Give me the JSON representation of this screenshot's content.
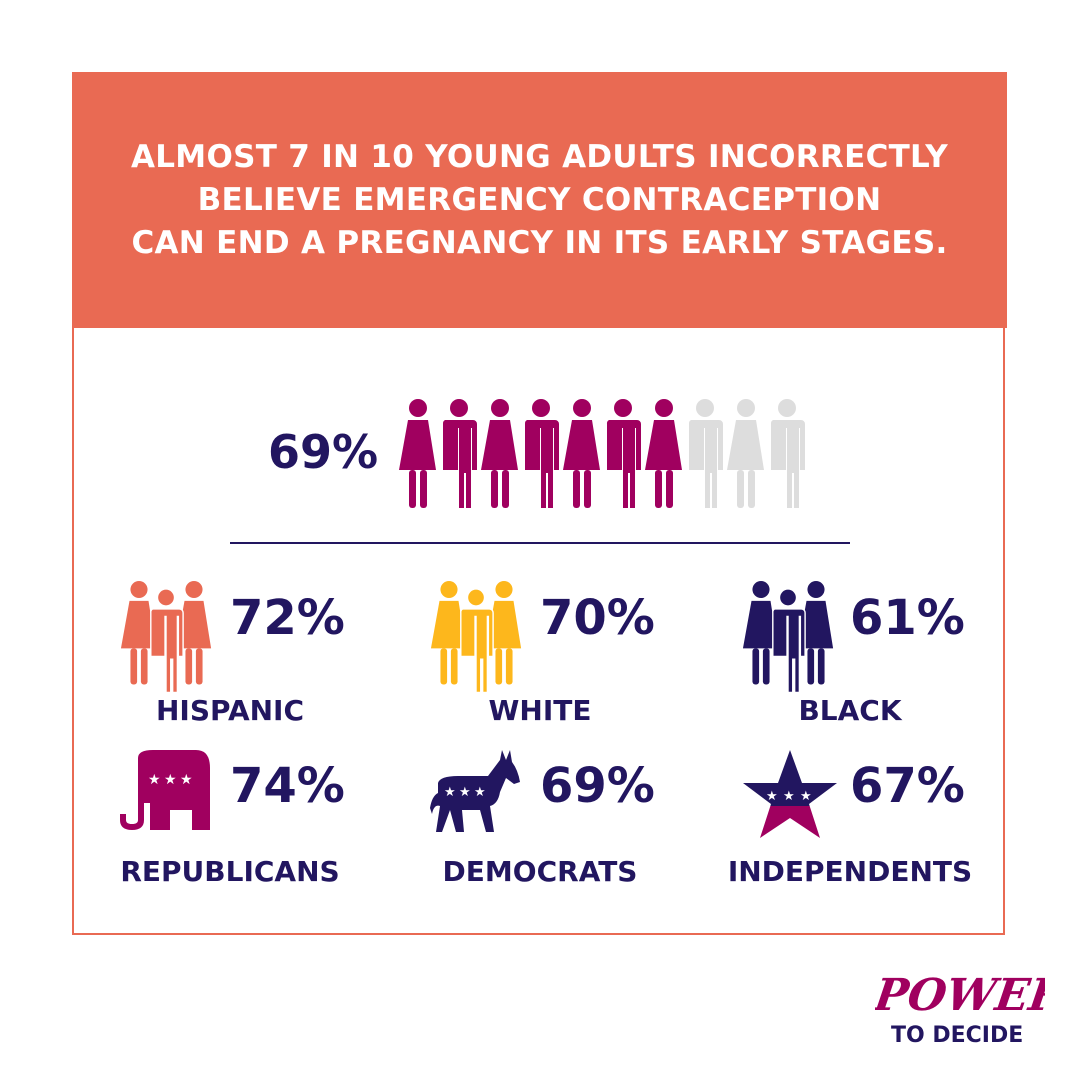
{
  "header": {
    "lines": [
      "ALMOST 7 IN 10 YOUNG ADULTS INCORRECTLY",
      "BELIEVE EMERGENCY CONTRACEPTION",
      "CAN END A PREGNANCY IN ITS EARLY STAGES."
    ]
  },
  "overall": {
    "label": "69%",
    "filled": 7,
    "total": 10
  },
  "groups": [
    {
      "label": "HISPANIC",
      "pct": "72%",
      "icon": "people-group-icon",
      "color": "#E96A53"
    },
    {
      "label": "WHITE",
      "pct": "70%",
      "icon": "people-group-icon",
      "color": "#FDB71C"
    },
    {
      "label": "BLACK",
      "pct": "61%",
      "icon": "people-group-icon",
      "color": "#221660"
    },
    {
      "label": "REPUBLICANS",
      "pct": "74%",
      "icon": "elephant-icon",
      "color": "#A0005F"
    },
    {
      "label": "DEMOCRATS",
      "pct": "69%",
      "icon": "donkey-icon",
      "color": "#221660"
    },
    {
      "label": "INDEPENDENTS",
      "pct": "67%",
      "icon": "star-icon",
      "color": "#221660"
    }
  ],
  "logo": {
    "line1": "POWER",
    "line2": "TO DECIDE"
  },
  "colors": {
    "accent": "#E96A53",
    "magenta": "#A0005F",
    "navy": "#221660",
    "yellow": "#FDB71C",
    "inactive": "#DDDDDD"
  },
  "chart_data": {
    "type": "bar",
    "title": "ALMOST 7 IN 10 YOUNG ADULTS INCORRECTLY BELIEVE EMERGENCY CONTRACEPTION CAN END A PREGNANCY IN ITS EARLY STAGES.",
    "overall": 69,
    "categories": [
      "HISPANIC",
      "WHITE",
      "BLACK",
      "REPUBLICANS",
      "DEMOCRATS",
      "INDEPENDENTS"
    ],
    "values": [
      72,
      70,
      61,
      74,
      69,
      67
    ],
    "unit": "%"
  }
}
